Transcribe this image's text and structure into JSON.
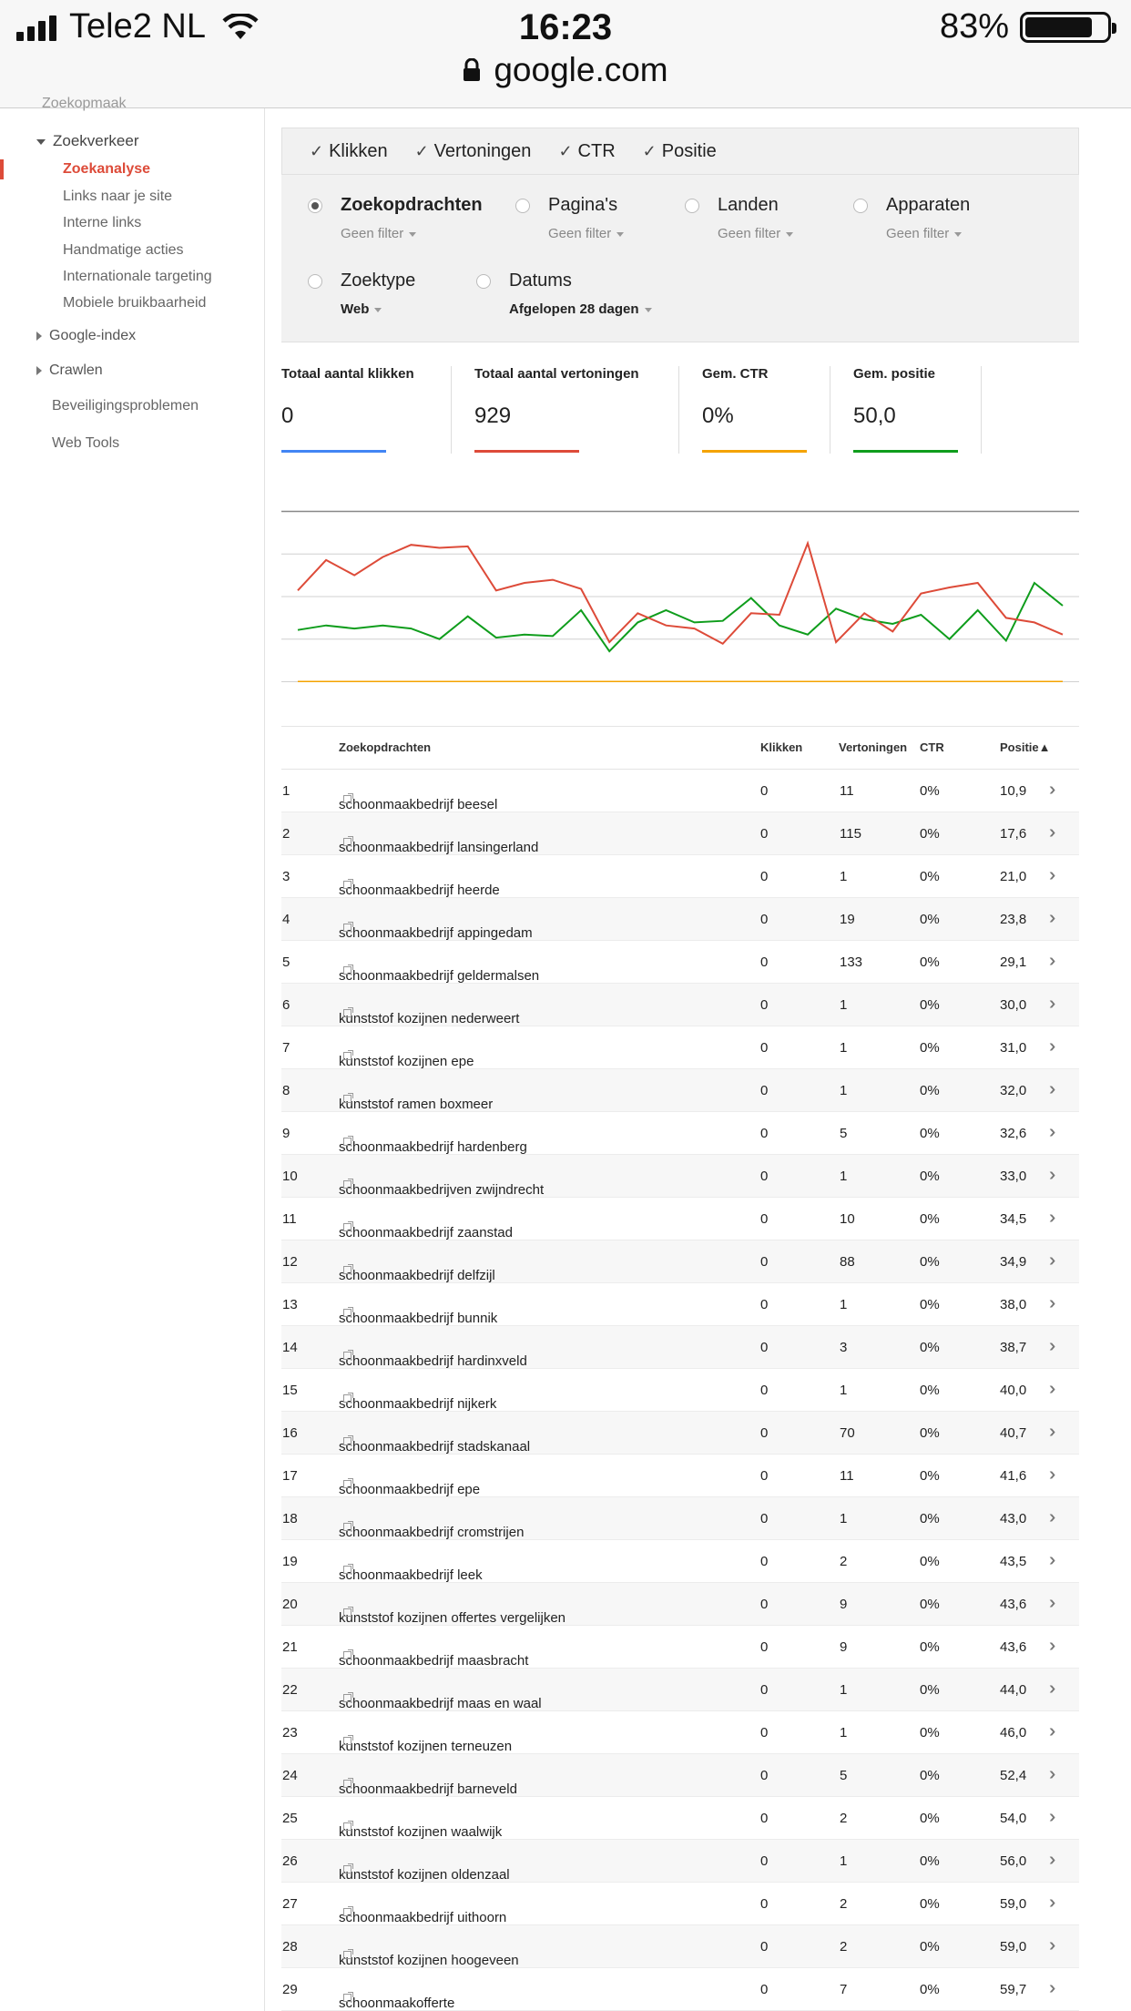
{
  "status_bar": {
    "carrier": "Tele2 NL",
    "time": "16:23",
    "battery": "83%",
    "battery_level": 0.83,
    "url": "google.com"
  },
  "sidebar": {
    "cut_item": "Zoekopmaak",
    "group_traffic": "Zoekverkeer",
    "traffic_items": [
      {
        "label": "Zoekanalyse",
        "active": true
      },
      {
        "label": "Links naar je site"
      },
      {
        "label": "Interne links"
      },
      {
        "label": "Handmatige acties"
      },
      {
        "label": "Internationale targeting"
      },
      {
        "label": "Mobiele bruikbaarheid"
      }
    ],
    "group_index": "Google-index",
    "group_crawl": "Crawlen",
    "security": "Beveiligingsproblemen",
    "webtools": "Web Tools"
  },
  "checkboxes": [
    {
      "label": "Klikken",
      "checked": true
    },
    {
      "label": "Vertoningen",
      "checked": true
    },
    {
      "label": "CTR",
      "checked": true
    },
    {
      "label": "Positie",
      "checked": true
    }
  ],
  "filters": [
    {
      "label": "Zoekopdrachten",
      "sub": "Geen filter",
      "selected": true
    },
    {
      "label": "Pagina's",
      "sub": "Geen filter"
    },
    {
      "label": "Landen",
      "sub": "Geen filter"
    },
    {
      "label": "Apparaten",
      "sub": "Geen filter"
    },
    {
      "label": "Zoektype",
      "sub": "Web"
    },
    {
      "label": "Datums",
      "sub": "Afgelopen 28 dagen"
    }
  ],
  "metrics": [
    {
      "label": "Totaal aantal klikken",
      "value": "0",
      "color": "#4285f4"
    },
    {
      "label": "Totaal aantal vertoningen",
      "value": "929",
      "color": "#dd4b39"
    },
    {
      "label": "Gem. CTR",
      "value": "0%",
      "color": "#f4a300"
    },
    {
      "label": "Gem. positie",
      "value": "50,0",
      "color": "#0f9d1c"
    }
  ],
  "chart_data": {
    "type": "line",
    "x": [
      1,
      2,
      3,
      4,
      5,
      6,
      7,
      8,
      9,
      10,
      11,
      12,
      13,
      14,
      15,
      16,
      17,
      18,
      19,
      20,
      21,
      22,
      23,
      24,
      25,
      26,
      27,
      28
    ],
    "series": [
      {
        "color": "#dd4b39",
        "values": [
          0.6,
          0.8,
          0.7,
          0.82,
          0.9,
          0.88,
          0.89,
          0.6,
          0.65,
          0.67,
          0.61,
          0.26,
          0.45,
          0.37,
          0.35,
          0.25,
          0.45,
          0.44,
          0.91,
          0.26,
          0.45,
          0.33,
          0.58,
          0.62,
          0.65,
          0.42,
          0.39,
          0.31
        ]
      },
      {
        "color": "#0f9d1c",
        "values": [
          0.34,
          0.37,
          0.35,
          0.37,
          0.35,
          0.28,
          0.43,
          0.29,
          0.31,
          0.3,
          0.47,
          0.2,
          0.39,
          0.47,
          0.39,
          0.4,
          0.55,
          0.37,
          0.31,
          0.48,
          0.41,
          0.38,
          0.44,
          0.28,
          0.47,
          0.27,
          0.65,
          0.5
        ]
      },
      {
        "color": "#f4a300",
        "values": [
          0,
          0,
          0,
          0,
          0,
          0,
          0,
          0,
          0,
          0,
          0,
          0,
          0,
          0,
          0,
          0,
          0,
          0,
          0,
          0,
          0,
          0,
          0,
          0,
          0,
          0,
          0,
          0
        ]
      }
    ],
    "grid": true,
    "xlabel": "",
    "ylabel": ""
  },
  "table": {
    "headers": {
      "query": "Zoekopdrachten",
      "clicks": "Klikken",
      "impressions": "Vertoningen",
      "ctr": "CTR",
      "position": "Positie▲"
    },
    "rows": [
      {
        "n": "1",
        "q": "schoonmaakbedrijf beesel",
        "k": "0",
        "v": "11",
        "ctr": "0%",
        "p": "10,9"
      },
      {
        "n": "2",
        "q": "schoonmaakbedrijf lansingerland",
        "k": "0",
        "v": "115",
        "ctr": "0%",
        "p": "17,6"
      },
      {
        "n": "3",
        "q": "schoonmaakbedrijf heerde",
        "k": "0",
        "v": "1",
        "ctr": "0%",
        "p": "21,0"
      },
      {
        "n": "4",
        "q": "schoonmaakbedrijf appingedam",
        "k": "0",
        "v": "19",
        "ctr": "0%",
        "p": "23,8"
      },
      {
        "n": "5",
        "q": "schoonmaakbedrijf geldermalsen",
        "k": "0",
        "v": "133",
        "ctr": "0%",
        "p": "29,1"
      },
      {
        "n": "6",
        "q": "kunststof kozijnen nederweert",
        "k": "0",
        "v": "1",
        "ctr": "0%",
        "p": "30,0"
      },
      {
        "n": "7",
        "q": "kunststof kozijnen epe",
        "k": "0",
        "v": "1",
        "ctr": "0%",
        "p": "31,0"
      },
      {
        "n": "8",
        "q": "kunststof ramen boxmeer",
        "k": "0",
        "v": "1",
        "ctr": "0%",
        "p": "32,0"
      },
      {
        "n": "9",
        "q": "schoonmaakbedrijf hardenberg",
        "k": "0",
        "v": "5",
        "ctr": "0%",
        "p": "32,6"
      },
      {
        "n": "10",
        "q": "schoonmaakbedrijven zwijndrecht",
        "k": "0",
        "v": "1",
        "ctr": "0%",
        "p": "33,0"
      },
      {
        "n": "11",
        "q": "schoonmaakbedrijf zaanstad",
        "k": "0",
        "v": "10",
        "ctr": "0%",
        "p": "34,5"
      },
      {
        "n": "12",
        "q": "schoonmaakbedrijf delfzijl",
        "k": "0",
        "v": "88",
        "ctr": "0%",
        "p": "34,9"
      },
      {
        "n": "13",
        "q": "schoonmaakbedrijf bunnik",
        "k": "0",
        "v": "1",
        "ctr": "0%",
        "p": "38,0"
      },
      {
        "n": "14",
        "q": "schoonmaakbedrijf hardinxveld",
        "k": "0",
        "v": "3",
        "ctr": "0%",
        "p": "38,7"
      },
      {
        "n": "15",
        "q": "schoonmaakbedrijf nijkerk",
        "k": "0",
        "v": "1",
        "ctr": "0%",
        "p": "40,0"
      },
      {
        "n": "16",
        "q": "schoonmaakbedrijf stadskanaal",
        "k": "0",
        "v": "70",
        "ctr": "0%",
        "p": "40,7"
      },
      {
        "n": "17",
        "q": "schoonmaakbedrijf epe",
        "k": "0",
        "v": "11",
        "ctr": "0%",
        "p": "41,6"
      },
      {
        "n": "18",
        "q": "schoonmaakbedrijf cromstrijen",
        "k": "0",
        "v": "1",
        "ctr": "0%",
        "p": "43,0"
      },
      {
        "n": "19",
        "q": "schoonmaakbedrijf leek",
        "k": "0",
        "v": "2",
        "ctr": "0%",
        "p": "43,5"
      },
      {
        "n": "20",
        "q": "kunststof kozijnen offertes vergelijken",
        "k": "0",
        "v": "9",
        "ctr": "0%",
        "p": "43,6"
      },
      {
        "n": "21",
        "q": "schoonmaakbedrijf maasbracht",
        "k": "0",
        "v": "9",
        "ctr": "0%",
        "p": "43,6"
      },
      {
        "n": "22",
        "q": "schoonmaakbedrijf maas en waal",
        "k": "0",
        "v": "1",
        "ctr": "0%",
        "p": "44,0"
      },
      {
        "n": "23",
        "q": "kunststof kozijnen terneuzen",
        "k": "0",
        "v": "1",
        "ctr": "0%",
        "p": "46,0"
      },
      {
        "n": "24",
        "q": "schoonmaakbedrijf barneveld",
        "k": "0",
        "v": "5",
        "ctr": "0%",
        "p": "52,4"
      },
      {
        "n": "25",
        "q": "kunststof kozijnen waalwijk",
        "k": "0",
        "v": "2",
        "ctr": "0%",
        "p": "54,0"
      },
      {
        "n": "26",
        "q": "kunststof kozijnen oldenzaal",
        "k": "0",
        "v": "1",
        "ctr": "0%",
        "p": "56,0"
      },
      {
        "n": "27",
        "q": "schoonmaakbedrijf uithoorn",
        "k": "0",
        "v": "2",
        "ctr": "0%",
        "p": "59,0"
      },
      {
        "n": "28",
        "q": "kunststof kozijnen hoogeveen",
        "k": "0",
        "v": "2",
        "ctr": "0%",
        "p": "59,0"
      },
      {
        "n": "29",
        "q": "schoonmaakofferte",
        "k": "0",
        "v": "7",
        "ctr": "0%",
        "p": "59,7"
      }
    ]
  }
}
